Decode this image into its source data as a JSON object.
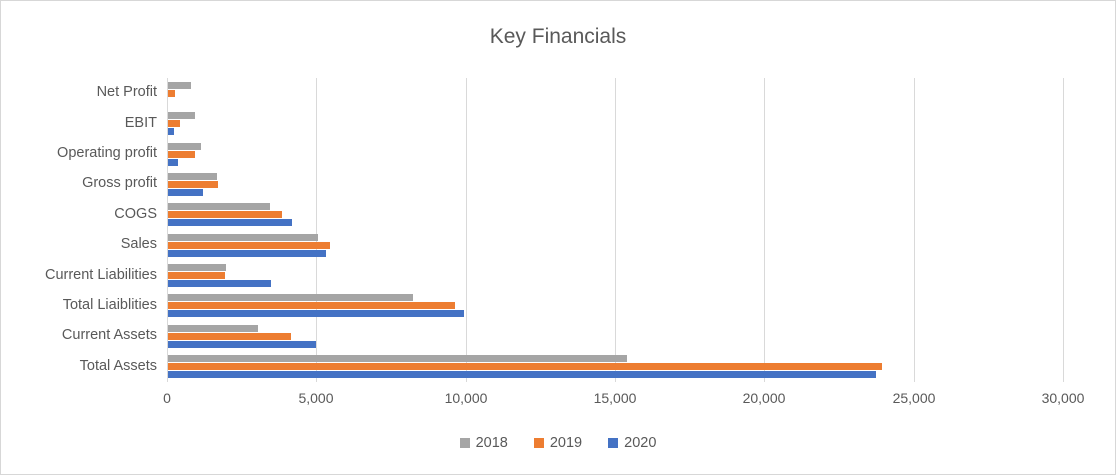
{
  "chart_data": {
    "type": "bar",
    "orientation": "horizontal",
    "title": "Key Financials",
    "categories_top_to_bottom": [
      "Net Profit",
      "EBIT",
      "Operating profit",
      "Gross profit",
      "COGS",
      "Sales",
      "Current Liabilities",
      "Total Liaiblities",
      "Current Assets",
      "Total Assets"
    ],
    "series": [
      {
        "name": "2018",
        "color": "#a5a5a5",
        "values": [
          770,
          890,
          1100,
          1650,
          3400,
          5010,
          1930,
          8210,
          3020,
          15370
        ]
      },
      {
        "name": "2019",
        "color": "#ed7d31",
        "values": [
          250,
          390,
          920,
          1670,
          3820,
          5430,
          1910,
          9600,
          4120,
          23920
        ]
      },
      {
        "name": "2020",
        "color": "#4472c4",
        "values": [
          0,
          200,
          350,
          1180,
          4160,
          5300,
          3450,
          9900,
          4950,
          23700
        ]
      }
    ],
    "bar_order_in_group_top_to_bottom": [
      "2018",
      "2019",
      "2020"
    ],
    "xlabel": "",
    "ylabel": "",
    "xlim": [
      0,
      30000
    ],
    "x_ticks": [
      {
        "value": 0,
        "label": "0"
      },
      {
        "value": 5000,
        "label": "5,000"
      },
      {
        "value": 10000,
        "label": "10,000"
      },
      {
        "value": 15000,
        "label": "15,000"
      },
      {
        "value": 20000,
        "label": "20,000"
      },
      {
        "value": 25000,
        "label": "25,000"
      },
      {
        "value": 30000,
        "label": "30,000"
      }
    ],
    "gridlines": "vertical",
    "legend_position": "bottom",
    "legend_entries": [
      "2018",
      "2019",
      "2020"
    ],
    "colors": {
      "axis_text": "#595959",
      "title_text": "#595959",
      "gridline": "#d9d9d9",
      "frame_border": "#d7d7d7",
      "background": "#ffffff"
    }
  }
}
